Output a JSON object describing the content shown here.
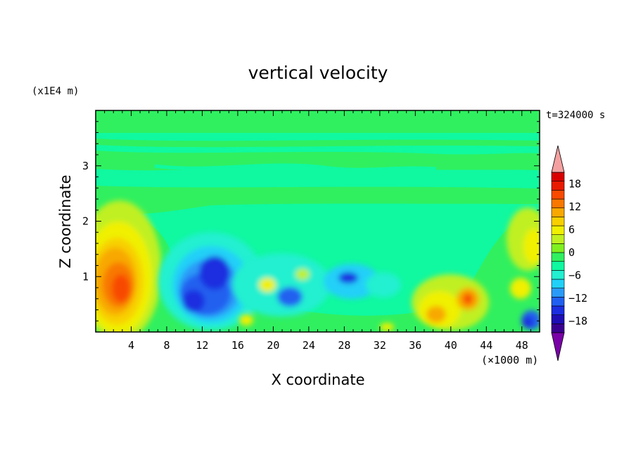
{
  "chart_data": {
    "type": "heatmap",
    "title": "vertical velocity",
    "xlabel": "X coordinate",
    "ylabel": "Z coordinate",
    "x_units": "(×1000 m)",
    "y_units": "(x1E4 m)",
    "time_label": "t=324000 s",
    "xlim": [
      0,
      50
    ],
    "ylim": [
      0,
      4
    ],
    "x_ticks": [
      4,
      8,
      12,
      16,
      20,
      24,
      28,
      32,
      36,
      40,
      44,
      48
    ],
    "y_ticks": [
      1,
      2,
      3
    ],
    "colorbar": {
      "tick_values": [
        18,
        12,
        6,
        0,
        -6,
        -12,
        -18
      ],
      "tick_labels": [
        "18",
        "12",
        "6",
        "0",
        "−6",
        "−12",
        "−18"
      ],
      "range": [
        -21,
        21
      ],
      "colors": [
        "#7a00a8",
        "#3a0090",
        "#1e0eb4",
        "#1b2ee0",
        "#2060f0",
        "#2a9af8",
        "#20d0f8",
        "#22f0d0",
        "#10f8a0",
        "#30f060",
        "#80f020",
        "#c0f020",
        "#f0f000",
        "#f8d000",
        "#f8a800",
        "#f87800",
        "#f84a00",
        "#e81a00",
        "#d80000",
        "#f4a0a0"
      ]
    },
    "features": [
      {
        "x": 3,
        "z": 0.8,
        "w": 18
      },
      {
        "x": 4,
        "z": 1.3,
        "w": 10
      },
      {
        "x": 12,
        "z": 0.55,
        "w": -14
      },
      {
        "x": 14,
        "z": 1.05,
        "w": -14
      },
      {
        "x": 21,
        "z": 0.6,
        "w": -10
      },
      {
        "x": 29,
        "z": 0.9,
        "w": -12
      },
      {
        "x": 38,
        "z": 0.3,
        "w": 10
      },
      {
        "x": 42,
        "z": 0.6,
        "w": 12
      },
      {
        "x": 48,
        "z": 1.5,
        "w": 8
      },
      {
        "x": 49,
        "z": 0.25,
        "w": -14
      }
    ]
  }
}
